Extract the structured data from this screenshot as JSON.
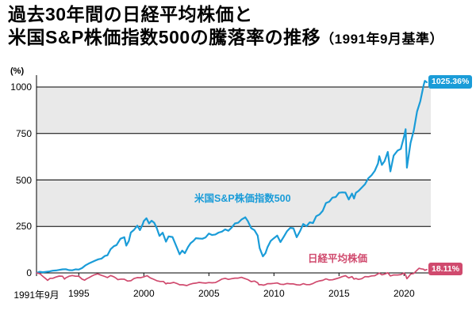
{
  "title": {
    "line1": "過去30年間の日経平均株価と",
    "line2": "米国S&P株価指数500の騰落率の推移",
    "line2_note": "（1991年9月基準）"
  },
  "chart_data": {
    "type": "line",
    "title": "過去30年間の日経平均株価と米国S&P株価指数500の騰落率の推移（1991年9月基準）",
    "ylabel": "(%)",
    "baseline_note": "1991年9月=0%",
    "ylim": [
      -90,
      1070
    ],
    "yticks": [
      0,
      250,
      500,
      750,
      1000
    ],
    "band_color": "#e9e9e9",
    "grid_color": "#000000",
    "xticks": [
      {
        "label": "1991年9月",
        "year": 1991.75
      },
      {
        "label": "1995",
        "year": 1995
      },
      {
        "label": "2000",
        "year": 2000
      },
      {
        "label": "2005",
        "year": 2005
      },
      {
        "label": "2010",
        "year": 2010
      },
      {
        "label": "2015",
        "year": 2015
      },
      {
        "label": "2020",
        "year": 2020
      }
    ],
    "series": [
      {
        "name": "米国S&P株価指数500",
        "color": "#1a9cd8",
        "end_label": "1025.36%",
        "end_value": 1025.36,
        "points": [
          [
            1991.75,
            0
          ],
          [
            1992,
            6
          ],
          [
            1992.25,
            4
          ],
          [
            1992.5,
            6
          ],
          [
            1992.75,
            8
          ],
          [
            1993,
            12
          ],
          [
            1993.25,
            13
          ],
          [
            1993.5,
            16
          ],
          [
            1993.75,
            19
          ],
          [
            1994,
            20
          ],
          [
            1994.25,
            15
          ],
          [
            1994.5,
            14
          ],
          [
            1994.75,
            19
          ],
          [
            1995,
            18
          ],
          [
            1995.25,
            26
          ],
          [
            1995.5,
            40
          ],
          [
            1995.75,
            50
          ],
          [
            1996,
            58
          ],
          [
            1996.25,
            66
          ],
          [
            1996.5,
            73
          ],
          [
            1996.75,
            77
          ],
          [
            1997,
            91
          ],
          [
            1997.2,
            95
          ],
          [
            1997.45,
            128
          ],
          [
            1997.7,
            144
          ],
          [
            1997.9,
            150
          ],
          [
            1998.2,
            184
          ],
          [
            1998.5,
            192
          ],
          [
            1998.65,
            147
          ],
          [
            1998.85,
            172
          ],
          [
            1999,
            217
          ],
          [
            1999.25,
            232
          ],
          [
            1999.5,
            254
          ],
          [
            1999.7,
            230
          ],
          [
            1999.9,
            260
          ],
          [
            2000,
            279
          ],
          [
            2000.2,
            294
          ],
          [
            2000.4,
            266
          ],
          [
            2000.6,
            281
          ],
          [
            2000.8,
            270
          ],
          [
            2001,
            240
          ],
          [
            2001.2,
            199
          ],
          [
            2001.45,
            216
          ],
          [
            2001.7,
            168
          ],
          [
            2001.9,
            196
          ],
          [
            2002.2,
            193
          ],
          [
            2002.55,
            135
          ],
          [
            2002.75,
            100
          ],
          [
            2002.95,
            120
          ],
          [
            2003.15,
            106
          ],
          [
            2003.4,
            140
          ],
          [
            2003.6,
            160
          ],
          [
            2003.8,
            171
          ],
          [
            2004,
            187
          ],
          [
            2004.25,
            185
          ],
          [
            2004.5,
            184
          ],
          [
            2004.75,
            191
          ],
          [
            2005,
            212
          ],
          [
            2005.25,
            204
          ],
          [
            2005.5,
            207
          ],
          [
            2005.75,
            217
          ],
          [
            2006,
            222
          ],
          [
            2006.25,
            234
          ],
          [
            2006.5,
            227
          ],
          [
            2006.75,
            244
          ],
          [
            2007,
            266
          ],
          [
            2007.25,
            270
          ],
          [
            2007.5,
            287
          ],
          [
            2007.8,
            299
          ],
          [
            2008,
            278
          ],
          [
            2008.25,
            241
          ],
          [
            2008.5,
            230
          ],
          [
            2008.75,
            201
          ],
          [
            2008.9,
            133
          ],
          [
            2009.15,
            89
          ],
          [
            2009.35,
            106
          ],
          [
            2009.5,
            137
          ],
          [
            2009.75,
            172
          ],
          [
            2010,
            187
          ],
          [
            2010.25,
            201
          ],
          [
            2010.5,
            166
          ],
          [
            2010.75,
            194
          ],
          [
            2011,
            224
          ],
          [
            2011.25,
            242
          ],
          [
            2011.5,
            240
          ],
          [
            2011.75,
            192
          ],
          [
            2012,
            224
          ],
          [
            2012.25,
            263
          ],
          [
            2012.5,
            251
          ],
          [
            2012.75,
            272
          ],
          [
            2013,
            268
          ],
          [
            2013.25,
            305
          ],
          [
            2013.5,
            314
          ],
          [
            2013.75,
            334
          ],
          [
            2014,
            376
          ],
          [
            2014.25,
            383
          ],
          [
            2014.5,
            405
          ],
          [
            2014.75,
            408
          ],
          [
            2015,
            431
          ],
          [
            2015.25,
            433
          ],
          [
            2015.5,
            432
          ],
          [
            2015.75,
            395
          ],
          [
            2016,
            427
          ],
          [
            2016.15,
            400
          ],
          [
            2016.3,
            431
          ],
          [
            2016.5,
            441
          ],
          [
            2016.75,
            459
          ],
          [
            2017,
            477
          ],
          [
            2017.25,
            509
          ],
          [
            2017.5,
            525
          ],
          [
            2017.75,
            549
          ],
          [
            2018,
            589
          ],
          [
            2018.1,
            628
          ],
          [
            2018.3,
            581
          ],
          [
            2018.5,
            601
          ],
          [
            2018.75,
            651
          ],
          [
            2018.95,
            546
          ],
          [
            2019.2,
            631
          ],
          [
            2019.5,
            658
          ],
          [
            2019.75,
            667
          ],
          [
            2020,
            733
          ],
          [
            2020.12,
            773
          ],
          [
            2020.22,
            566
          ],
          [
            2020.5,
            699
          ],
          [
            2020.75,
            767
          ],
          [
            2021,
            868
          ],
          [
            2021.25,
            924
          ],
          [
            2021.5,
            1008
          ],
          [
            2021.6,
            1033
          ],
          [
            2021.75,
            1025.36
          ]
        ]
      },
      {
        "name": "日経平均株価",
        "color": "#d04a6e",
        "end_label": "18.11%",
        "end_value": 18.11,
        "points": [
          [
            1991.75,
            0
          ],
          [
            1992,
            -4
          ],
          [
            1992.25,
            -19
          ],
          [
            1992.5,
            -33
          ],
          [
            1992.6,
            -40
          ],
          [
            1992.8,
            -29
          ],
          [
            1993,
            -29
          ],
          [
            1993.25,
            -22
          ],
          [
            1993.5,
            -17
          ],
          [
            1993.75,
            -18
          ],
          [
            1993.9,
            -33
          ],
          [
            1994,
            -27
          ],
          [
            1994.25,
            -18
          ],
          [
            1994.5,
            -14
          ],
          [
            1994.75,
            -18
          ],
          [
            1995,
            -18
          ],
          [
            1995.25,
            -33
          ],
          [
            1995.45,
            -39
          ],
          [
            1995.6,
            -32
          ],
          [
            1995.8,
            -25
          ],
          [
            1996,
            -17
          ],
          [
            1996.2,
            -10
          ],
          [
            1996.45,
            -5
          ],
          [
            1996.7,
            -12
          ],
          [
            1997,
            -19
          ],
          [
            1997.2,
            -25
          ],
          [
            1997.45,
            -14
          ],
          [
            1997.7,
            -21
          ],
          [
            1997.9,
            -30
          ],
          [
            1998,
            -36
          ],
          [
            1998.25,
            -33
          ],
          [
            1998.5,
            -34
          ],
          [
            1998.75,
            -44
          ],
          [
            1999,
            -42
          ],
          [
            1999.25,
            -30
          ],
          [
            1999.5,
            -25
          ],
          [
            1999.75,
            -26
          ],
          [
            2000,
            -21
          ],
          [
            2000.25,
            -15
          ],
          [
            2000.5,
            -27
          ],
          [
            2000.75,
            -34
          ],
          [
            2001,
            -42
          ],
          [
            2001.25,
            -46
          ],
          [
            2001.5,
            -46
          ],
          [
            2001.7,
            -59
          ],
          [
            2001.8,
            -55
          ],
          [
            2002,
            -56
          ],
          [
            2002.3,
            -51
          ],
          [
            2002.55,
            -57
          ],
          [
            2002.75,
            -64
          ],
          [
            2003,
            -64
          ],
          [
            2003.3,
            -68
          ],
          [
            2003.5,
            -62
          ],
          [
            2003.75,
            -57
          ],
          [
            2004,
            -55
          ],
          [
            2004.25,
            -51
          ],
          [
            2004.5,
            -53
          ],
          [
            2004.75,
            -55
          ],
          [
            2005,
            -52
          ],
          [
            2005.25,
            -53
          ],
          [
            2005.5,
            -52
          ],
          [
            2005.75,
            -43
          ],
          [
            2006,
            -33
          ],
          [
            2006.25,
            -29
          ],
          [
            2006.5,
            -35
          ],
          [
            2006.75,
            -31
          ],
          [
            2007,
            -28
          ],
          [
            2007.25,
            -28
          ],
          [
            2007.5,
            -24
          ],
          [
            2007.75,
            -30
          ],
          [
            2008,
            -36
          ],
          [
            2008.25,
            -47
          ],
          [
            2008.5,
            -44
          ],
          [
            2008.75,
            -53
          ],
          [
            2008.85,
            -64
          ],
          [
            2009,
            -63
          ],
          [
            2009.2,
            -66
          ],
          [
            2009.35,
            -63
          ],
          [
            2009.5,
            -58
          ],
          [
            2009.75,
            -58
          ],
          [
            2010,
            -56
          ],
          [
            2010.25,
            -54
          ],
          [
            2010.5,
            -61
          ],
          [
            2010.75,
            -62
          ],
          [
            2011,
            -57
          ],
          [
            2011.25,
            -59
          ],
          [
            2011.5,
            -59
          ],
          [
            2011.75,
            -64
          ],
          [
            2012,
            -65
          ],
          [
            2012.25,
            -58
          ],
          [
            2012.5,
            -63
          ],
          [
            2012.75,
            -63
          ],
          [
            2013,
            -57
          ],
          [
            2013.25,
            -48
          ],
          [
            2013.5,
            -43
          ],
          [
            2013.75,
            -40
          ],
          [
            2014,
            -32
          ],
          [
            2014.25,
            -38
          ],
          [
            2014.5,
            -37
          ],
          [
            2014.75,
            -32
          ],
          [
            2015,
            -27
          ],
          [
            2015.25,
            -20
          ],
          [
            2015.5,
            -15
          ],
          [
            2015.75,
            -27
          ],
          [
            2016,
            -20
          ],
          [
            2016.15,
            -33
          ],
          [
            2016.3,
            -30
          ],
          [
            2016.5,
            -35
          ],
          [
            2016.75,
            -31
          ],
          [
            2017,
            -20
          ],
          [
            2017.25,
            -21
          ],
          [
            2017.5,
            -16
          ],
          [
            2017.75,
            -15
          ],
          [
            2018,
            -5
          ],
          [
            2018.1,
            -1
          ],
          [
            2018.3,
            -10
          ],
          [
            2018.5,
            -7
          ],
          [
            2018.75,
            1
          ],
          [
            2018.95,
            -16
          ],
          [
            2019.2,
            -11
          ],
          [
            2019.5,
            -11
          ],
          [
            2019.75,
            -9
          ],
          [
            2020,
            -1
          ],
          [
            2020.12,
            -12
          ],
          [
            2020.22,
            -31
          ],
          [
            2020.4,
            -16
          ],
          [
            2020.5,
            -7
          ],
          [
            2020.75,
            -3
          ],
          [
            2021,
            15
          ],
          [
            2021.15,
            25
          ],
          [
            2021.3,
            22
          ],
          [
            2021.5,
            20
          ],
          [
            2021.6,
            14
          ],
          [
            2021.75,
            18.11
          ]
        ]
      }
    ]
  }
}
